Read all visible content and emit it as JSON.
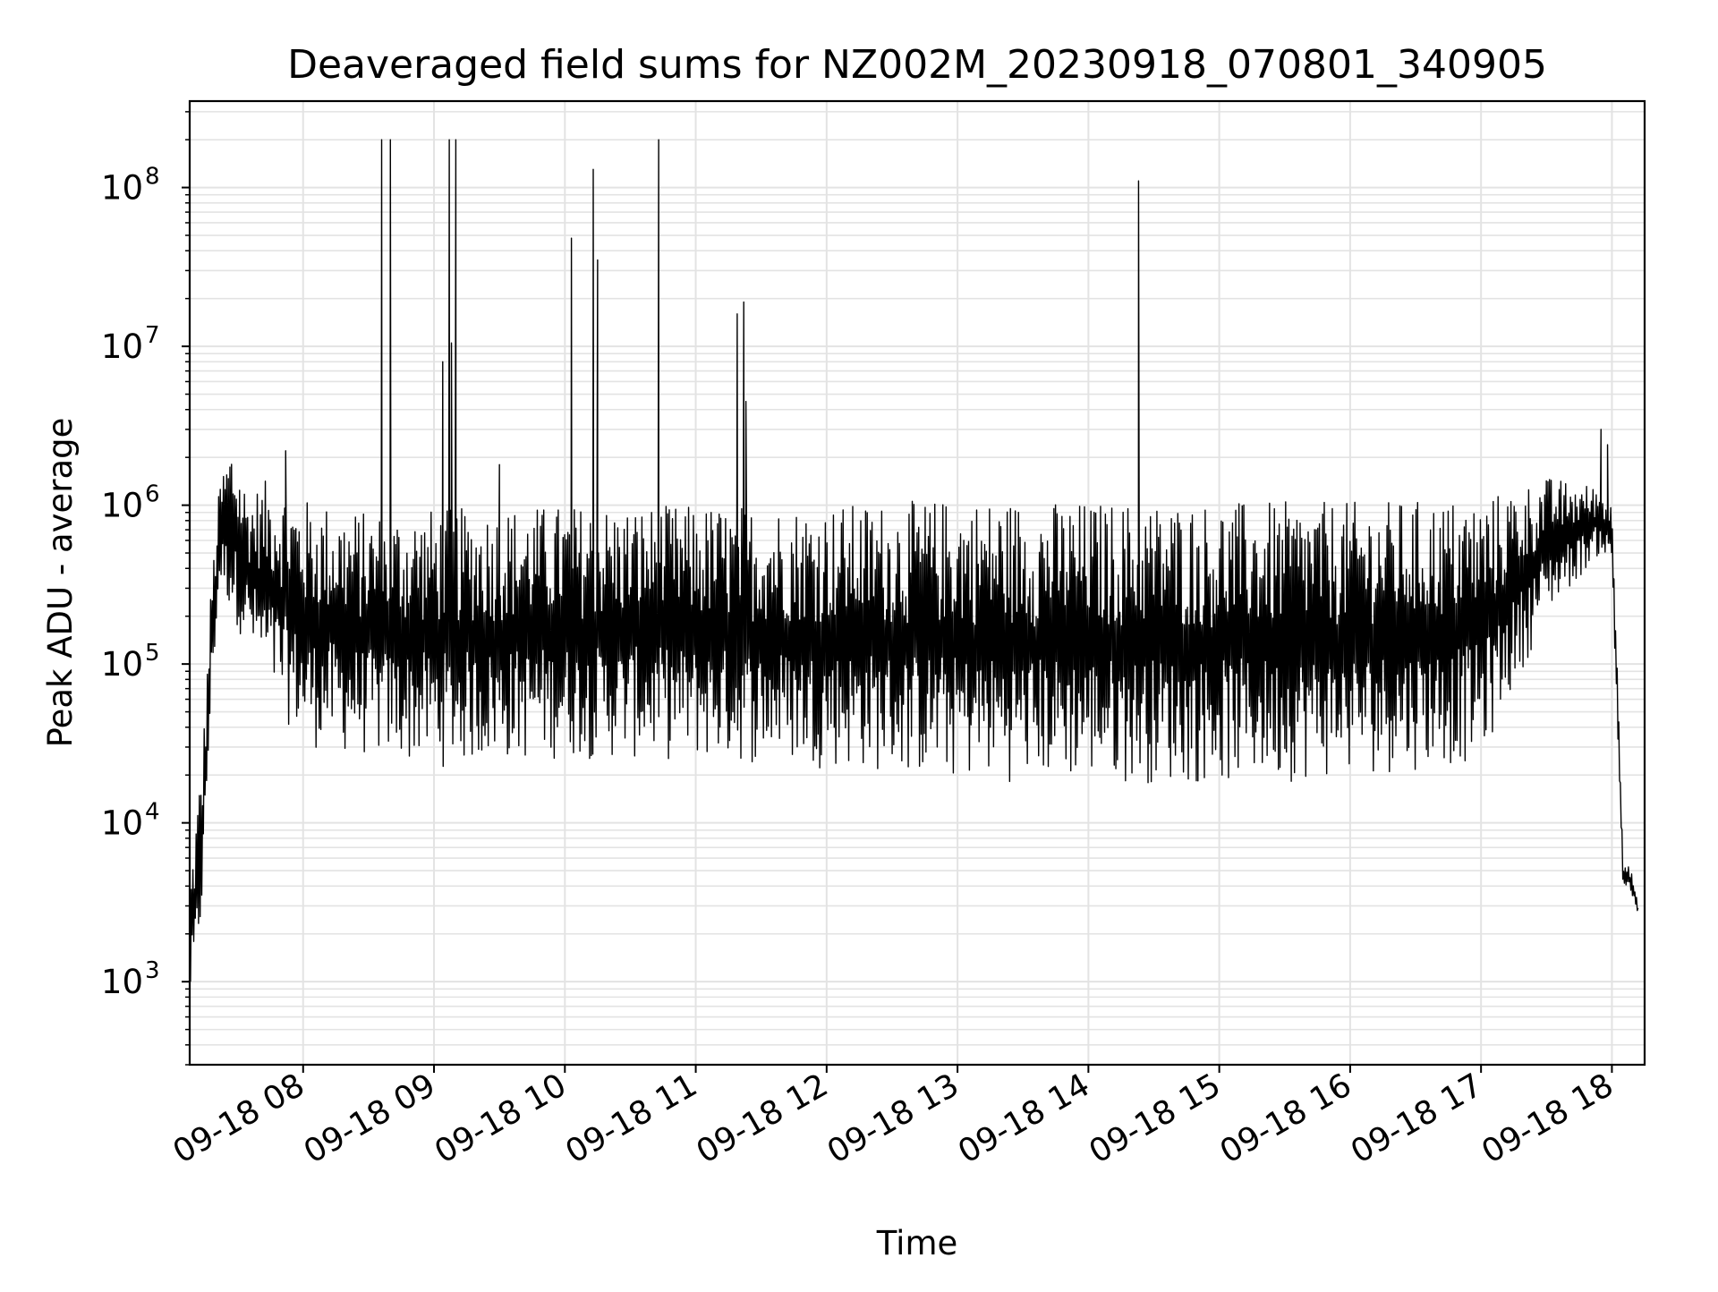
{
  "chart_data": {
    "type": "line",
    "title": "Deaveraged field sums for NZ002M_20230918_070801_340905",
    "xlabel": "Time",
    "ylabel": "Peak ADU - average",
    "yscale": "log",
    "ylim": [
      300,
      350000000
    ],
    "xlim": [
      "2023-09-18 07:08",
      "2023-09-18 18:15"
    ],
    "grid": true,
    "grid_color": "#e3e3e3",
    "line_color": "#000000",
    "background": "#ffffff",
    "x_ticks": [
      {
        "t": "2023-09-18 08:00",
        "label": "09-18 08"
      },
      {
        "t": "2023-09-18 09:00",
        "label": "09-18 09"
      },
      {
        "t": "2023-09-18 10:00",
        "label": "09-18 10"
      },
      {
        "t": "2023-09-18 11:00",
        "label": "09-18 11"
      },
      {
        "t": "2023-09-18 12:00",
        "label": "09-18 12"
      },
      {
        "t": "2023-09-18 13:00",
        "label": "09-18 13"
      },
      {
        "t": "2023-09-18 14:00",
        "label": "09-18 14"
      },
      {
        "t": "2023-09-18 15:00",
        "label": "09-18 15"
      },
      {
        "t": "2023-09-18 16:00",
        "label": "09-18 16"
      },
      {
        "t": "2023-09-18 17:00",
        "label": "09-18 17"
      },
      {
        "t": "2023-09-18 18:00",
        "label": "09-18 18"
      }
    ],
    "y_ticks": [
      {
        "v": 1000,
        "base": "10",
        "exp": "3"
      },
      {
        "v": 10000,
        "base": "10",
        "exp": "4"
      },
      {
        "v": 100000,
        "base": "10",
        "exp": "5"
      },
      {
        "v": 1000000,
        "base": "10",
        "exp": "6"
      },
      {
        "v": 10000000,
        "base": "10",
        "exp": "7"
      },
      {
        "v": 100000000,
        "base": "10",
        "exp": "8"
      }
    ],
    "series": [
      {
        "envelope_upper": [
          [
            "2023-09-18 07:08",
            4000
          ],
          [
            "2023-09-18 07:11",
            12000
          ],
          [
            "2023-09-18 07:14",
            30000
          ],
          [
            "2023-09-18 07:18",
            350000
          ],
          [
            "2023-09-18 07:22",
            1500000
          ],
          [
            "2023-09-18 07:27",
            2600000
          ],
          [
            "2023-09-18 07:35",
            1200000
          ],
          [
            "2023-09-18 07:45",
            1500000
          ],
          [
            "2023-09-18 08:00",
            1100000
          ],
          [
            "2023-09-18 08:30",
            900000
          ],
          [
            "2023-09-18 09:00",
            950000
          ],
          [
            "2023-09-18 10:00",
            1000000
          ],
          [
            "2023-09-18 11:00",
            1000000
          ],
          [
            "2023-09-18 12:00",
            1000000
          ],
          [
            "2023-09-18 13:00",
            1100000
          ],
          [
            "2023-09-18 14:00",
            1050000
          ],
          [
            "2023-09-18 15:00",
            1050000
          ],
          [
            "2023-09-18 16:00",
            1050000
          ],
          [
            "2023-09-18 17:00",
            1100000
          ],
          [
            "2023-09-18 17:30",
            1500000
          ],
          [
            "2023-09-18 17:55",
            1300000
          ],
          [
            "2023-09-18 18:00",
            1000000
          ],
          [
            "2023-09-18 18:03",
            100000
          ],
          [
            "2023-09-18 18:05",
            6000
          ],
          [
            "2023-09-18 18:09",
            5000
          ],
          [
            "2023-09-18 18:12",
            3000
          ]
        ],
        "envelope_lower": [
          [
            "2023-09-18 07:08",
            700
          ],
          [
            "2023-09-18 07:11",
            1000
          ],
          [
            "2023-09-18 07:14",
            3000
          ],
          [
            "2023-09-18 07:18",
            60000
          ],
          [
            "2023-09-18 07:22",
            300000
          ],
          [
            "2023-09-18 07:27",
            200000
          ],
          [
            "2023-09-18 07:35",
            120000
          ],
          [
            "2023-09-18 07:45",
            60000
          ],
          [
            "2023-09-18 08:00",
            30000
          ],
          [
            "2023-09-18 08:30",
            25000
          ],
          [
            "2023-09-18 09:00",
            22000
          ],
          [
            "2023-09-18 10:00",
            25000
          ],
          [
            "2023-09-18 11:00",
            24000
          ],
          [
            "2023-09-18 12:00",
            22000
          ],
          [
            "2023-09-18 13:00",
            18000
          ],
          [
            "2023-09-18 14:00",
            18000
          ],
          [
            "2023-09-18 15:00",
            17000
          ],
          [
            "2023-09-18 16:00",
            19000
          ],
          [
            "2023-09-18 17:00",
            24000
          ],
          [
            "2023-09-18 17:30",
            200000
          ],
          [
            "2023-09-18 17:55",
            500000
          ],
          [
            "2023-09-18 18:00",
            400000
          ],
          [
            "2023-09-18 18:03",
            20000
          ],
          [
            "2023-09-18 18:05",
            4000
          ],
          [
            "2023-09-18 18:09",
            3500
          ],
          [
            "2023-09-18 18:12",
            2500
          ]
        ],
        "spikes": [
          [
            "2023-09-18 08:36",
            200000000
          ],
          [
            "2023-09-18 08:40",
            200000000
          ],
          [
            "2023-09-18 09:04",
            8000000
          ],
          [
            "2023-09-18 09:07",
            200000000
          ],
          [
            "2023-09-18 09:08",
            10500000
          ],
          [
            "2023-09-18 09:10",
            200000000
          ],
          [
            "2023-09-18 10:03",
            48000000
          ],
          [
            "2023-09-18 10:13",
            130000000
          ],
          [
            "2023-09-18 10:15",
            35000000
          ],
          [
            "2023-09-18 10:43",
            200000000
          ],
          [
            "2023-09-18 11:19",
            16000000
          ],
          [
            "2023-09-18 11:22",
            19000000
          ],
          [
            "2023-09-18 11:23",
            4500000
          ],
          [
            "2023-09-18 14:23",
            110000000
          ],
          [
            "2023-09-18 07:52",
            2200000
          ],
          [
            "2023-09-18 09:30",
            1800000
          ],
          [
            "2023-09-18 17:55",
            3000000
          ],
          [
            "2023-09-18 17:58",
            2400000
          ]
        ]
      }
    ]
  }
}
